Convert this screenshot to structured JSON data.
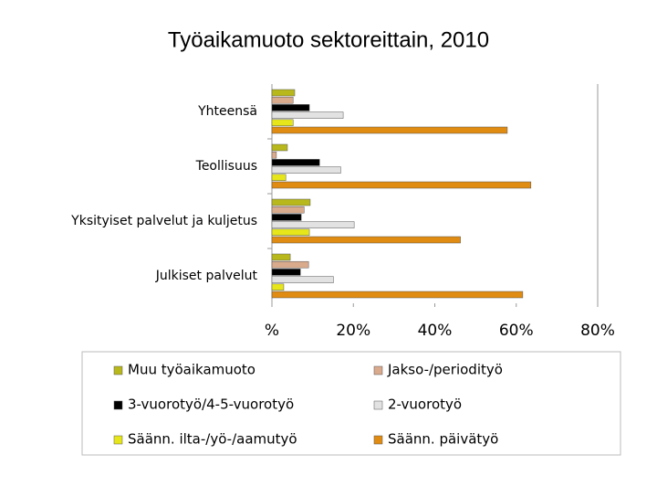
{
  "chart_data": {
    "type": "bar",
    "orientation": "horizontal",
    "title": "Työaikamuoto sektoreittain, 2010",
    "categories": [
      "Yhteensä",
      "Teollisuus",
      "Yksityiset palvelut ja kuljetus",
      "Julkiset palvelut"
    ],
    "series": [
      {
        "name": "Muu työaikamuoto",
        "color": "#b8b81c",
        "values": [
          5.6,
          3.8,
          9.4,
          4.5
        ]
      },
      {
        "name": "Jakso-/periodityö",
        "color": "#d9aa8c",
        "values": [
          5.2,
          1.1,
          7.9,
          9.0
        ]
      },
      {
        "name": "3-vuorotyö/4-5-vuorotyö",
        "color": "#000000",
        "values": [
          9.2,
          11.7,
          7.2,
          7.0
        ]
      },
      {
        "name": "2-vuorotyö",
        "color": "#e2e2e2",
        "values": [
          17.5,
          16.9,
          20.2,
          15.1
        ]
      },
      {
        "name": "Säänn. ilta-/yö-/aamutyö",
        "color": "#e6e61a",
        "values": [
          5.2,
          3.4,
          9.2,
          2.9
        ]
      },
      {
        "name": "Säänn. päivätyö",
        "color": "#e08b12",
        "values": [
          57.8,
          63.6,
          46.3,
          61.6
        ]
      }
    ],
    "xlim": [
      0,
      80
    ],
    "xticks": [
      {
        "value": 0,
        "label": "%"
      },
      {
        "value": 20,
        "label": "20%"
      },
      {
        "value": 40,
        "label": "40%"
      },
      {
        "value": 60,
        "label": "60%"
      },
      {
        "value": 80,
        "label": "80%"
      }
    ]
  }
}
